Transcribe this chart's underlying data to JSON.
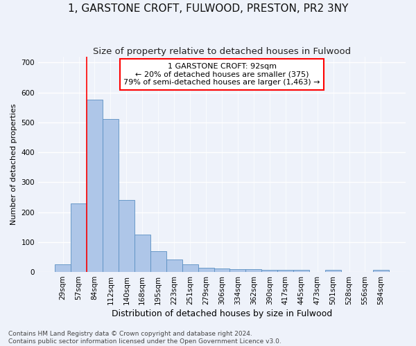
{
  "title": "1, GARSTONE CROFT, FULWOOD, PRESTON, PR2 3NY",
  "subtitle": "Size of property relative to detached houses in Fulwood",
  "xlabel": "Distribution of detached houses by size in Fulwood",
  "ylabel": "Number of detached properties",
  "categories": [
    "29sqm",
    "57sqm",
    "84sqm",
    "112sqm",
    "140sqm",
    "168sqm",
    "195sqm",
    "223sqm",
    "251sqm",
    "279sqm",
    "306sqm",
    "334sqm",
    "362sqm",
    "390sqm",
    "417sqm",
    "445sqm",
    "473sqm",
    "501sqm",
    "528sqm",
    "556sqm",
    "584sqm"
  ],
  "values": [
    25,
    230,
    575,
    510,
    240,
    125,
    70,
    42,
    25,
    15,
    11,
    10,
    10,
    6,
    6,
    6,
    0,
    8,
    0,
    0,
    6
  ],
  "bar_color": "#aec6e8",
  "bar_edge_color": "#5a8fc2",
  "red_line_x": 1.5,
  "annotation_line_color": "red",
  "annotation_box_text": "1 GARSTONE CROFT: 92sqm\n← 20% of detached houses are smaller (375)\n79% of semi-detached houses are larger (1,463) →",
  "ylim": [
    0,
    720
  ],
  "yticks": [
    0,
    100,
    200,
    300,
    400,
    500,
    600,
    700
  ],
  "footer_line1": "Contains HM Land Registry data © Crown copyright and database right 2024.",
  "footer_line2": "Contains public sector information licensed under the Open Government Licence v3.0.",
  "background_color": "#eef2fa",
  "grid_color": "#ffffff",
  "title_fontsize": 11,
  "subtitle_fontsize": 9.5,
  "xlabel_fontsize": 9,
  "ylabel_fontsize": 8,
  "tick_fontsize": 7.5,
  "annot_fontsize": 8,
  "footer_fontsize": 6.5
}
